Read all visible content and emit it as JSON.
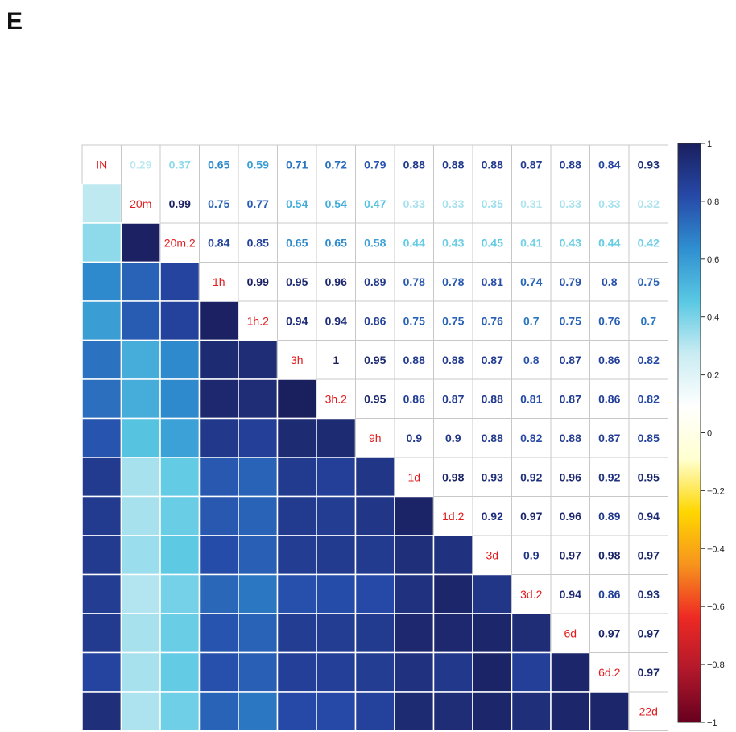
{
  "panel_label": "E",
  "chart_data": {
    "type": "heatmap",
    "labels": [
      "IN",
      "20m",
      "20m.2",
      "1h",
      "1h.2",
      "3h",
      "3h.2",
      "9h",
      "1d",
      "1d.2",
      "3d",
      "3d.2",
      "6d",
      "6d.2",
      "22d"
    ],
    "matrix": [
      [
        1,
        0.29,
        0.37,
        0.65,
        0.59,
        0.71,
        0.72,
        0.79,
        0.88,
        0.88,
        0.88,
        0.87,
        0.88,
        0.84,
        0.93
      ],
      [
        0.29,
        1,
        0.99,
        0.75,
        0.77,
        0.54,
        0.54,
        0.47,
        0.33,
        0.33,
        0.35,
        0.31,
        0.33,
        0.33,
        0.32
      ],
      [
        0.37,
        0.99,
        1,
        0.84,
        0.85,
        0.65,
        0.65,
        0.58,
        0.44,
        0.43,
        0.45,
        0.41,
        0.43,
        0.44,
        0.42
      ],
      [
        0.65,
        0.75,
        0.84,
        1,
        0.99,
        0.95,
        0.96,
        0.89,
        0.78,
        0.78,
        0.81,
        0.74,
        0.79,
        0.8,
        0.75
      ],
      [
        0.59,
        0.77,
        0.85,
        0.99,
        1,
        0.94,
        0.94,
        0.86,
        0.75,
        0.75,
        0.76,
        0.7,
        0.75,
        0.76,
        0.7
      ],
      [
        0.71,
        0.54,
        0.65,
        0.95,
        0.94,
        1,
        1,
        0.95,
        0.88,
        0.88,
        0.87,
        0.8,
        0.87,
        0.86,
        0.82
      ],
      [
        0.72,
        0.54,
        0.65,
        0.96,
        0.94,
        1,
        1,
        0.95,
        0.86,
        0.87,
        0.88,
        0.81,
        0.87,
        0.86,
        0.82
      ],
      [
        0.79,
        0.47,
        0.58,
        0.89,
        0.86,
        0.95,
        0.95,
        1,
        0.9,
        0.9,
        0.88,
        0.82,
        0.88,
        0.87,
        0.85
      ],
      [
        0.88,
        0.33,
        0.44,
        0.78,
        0.75,
        0.88,
        0.86,
        0.9,
        1,
        0.98,
        0.93,
        0.92,
        0.96,
        0.92,
        0.95
      ],
      [
        0.88,
        0.33,
        0.43,
        0.78,
        0.75,
        0.88,
        0.87,
        0.9,
        0.98,
        1,
        0.92,
        0.97,
        0.96,
        0.89,
        0.94
      ],
      [
        0.88,
        0.35,
        0.45,
        0.81,
        0.76,
        0.87,
        0.88,
        0.88,
        0.93,
        0.92,
        1,
        0.9,
        0.97,
        0.98,
        0.97
      ],
      [
        0.87,
        0.31,
        0.41,
        0.74,
        0.7,
        0.8,
        0.81,
        0.82,
        0.92,
        0.97,
        0.9,
        1,
        0.94,
        0.86,
        0.93
      ],
      [
        0.88,
        0.33,
        0.43,
        0.79,
        0.75,
        0.87,
        0.87,
        0.88,
        0.96,
        0.96,
        0.97,
        0.94,
        1,
        0.97,
        0.97
      ],
      [
        0.84,
        0.33,
        0.44,
        0.8,
        0.76,
        0.86,
        0.86,
        0.87,
        0.92,
        0.89,
        0.98,
        0.86,
        0.97,
        1,
        0.97
      ],
      [
        0.93,
        0.32,
        0.42,
        0.75,
        0.7,
        0.82,
        0.82,
        0.85,
        0.95,
        0.94,
        0.97,
        0.93,
        0.97,
        0.97,
        1
      ]
    ],
    "upper_display": "number",
    "lower_display": "color",
    "scale_range": [
      -1,
      1
    ],
    "colorbar_ticks": [
      "1",
      "0.8",
      "0.6",
      "0.4",
      "0.2",
      "0",
      "−0.2",
      "−0.4",
      "−0.6",
      "−0.8",
      "−1"
    ],
    "colorbar_tick_values": [
      1,
      0.8,
      0.6,
      0.4,
      0.2,
      0,
      -0.2,
      -0.4,
      -0.6,
      -0.8,
      -1
    ],
    "colormap": [
      "#67001f",
      "#b2182b",
      "#ee2a24",
      "#f7941d",
      "#ffd700",
      "#ffffd0",
      "#ffffff",
      "#c9ecf2",
      "#5ac8e3",
      "#2f8fd0",
      "#2649a8",
      "#1a1f5e"
    ],
    "diagonal_label_color": "#e31a1c",
    "legend_placement": "right"
  }
}
